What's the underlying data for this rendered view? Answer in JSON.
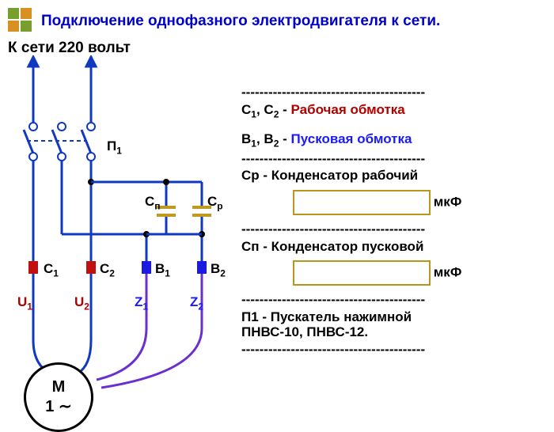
{
  "logo": {
    "colors": [
      "#7a9e2e",
      "#d89020",
      "#d89020",
      "#7a9e2e"
    ]
  },
  "title": "Подключение однофазного электродвигателя к сети.",
  "title_color": "#0000c8",
  "supply_label": "К сети 220 вольт",
  "legend": {
    "dash_line": "-----------------------------------------",
    "c1c2": {
      "prefix": "C1, C2 - ",
      "label": "Рабочая обмотка",
      "color": "#b00000"
    },
    "b1b2": {
      "prefix": "B1, B2 - ",
      "label": "Пусковая обмотка",
      "color": "#1a1aff"
    },
    "cp": "Cр - Конденсатор рабочий",
    "cp_unit": "мкФ",
    "cn": "Cп - Конденсатор пусковой",
    "cn_unit": "мкФ",
    "p1": "П1 - Пускатель нажимной\nПНВС-10, ПНВС-12."
  },
  "schematic": {
    "wire_color_main": "#1038c0",
    "wire_color_start": "#6a2fcf",
    "cap_color": "#c09a20",
    "run_term_color": "#c01010",
    "start_term_color": "#1a1ae0",
    "node_color": "#000000",
    "labels": {
      "P1": "П1",
      "Cn": "Cп",
      "Cp": "Cр",
      "C1": "C1",
      "C2": "C2",
      "B1": "B1",
      "B2": "B2",
      "U1": "U1",
      "U2": "U2",
      "Z1": "Z1",
      "Z2": "Z2"
    },
    "u_label_color": "#b00000",
    "z_label_color": "#1a1aff",
    "motor": {
      "top": "M",
      "bottom": "1 ∼"
    }
  }
}
